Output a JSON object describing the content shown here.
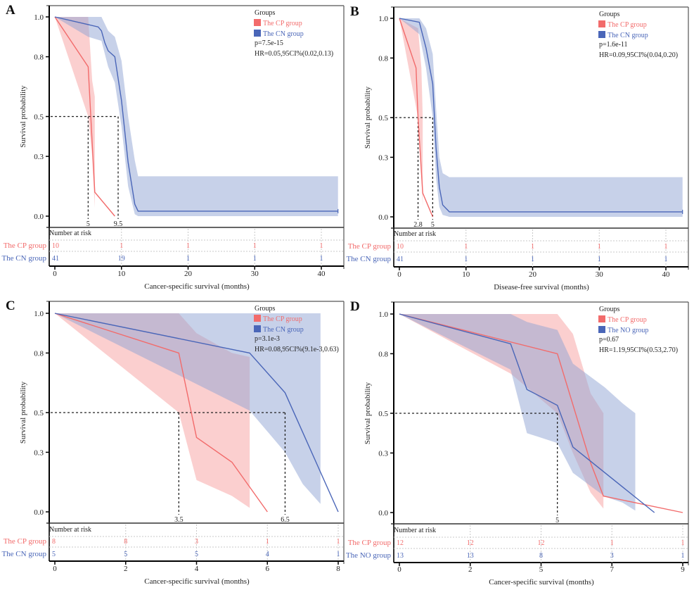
{
  "colors": {
    "cp": "#f26b6b",
    "cp_fill": "#f7a8a8",
    "cn": "#4a66b8",
    "cn_fill": "#8fa3d4",
    "text": "#1a1a1a",
    "dashed": "#222222",
    "grid": "#c8c8c8"
  },
  "chart_data": [
    {
      "type": "line",
      "panel_label": "A",
      "title": "",
      "xlabel": "Cancer-specific survival (months)",
      "ylabel": "Survival probability",
      "x_ticks": [
        0,
        10,
        20,
        30,
        40
      ],
      "x_tick_labels": [
        "0",
        "10",
        "20",
        "30",
        "40"
      ],
      "x_range": [
        0,
        43
      ],
      "y_ticks": [
        0.0,
        0.3,
        0.5,
        0.8,
        1.0
      ],
      "y_tick_labels": [
        "0.0",
        "0.3",
        "0.5",
        "0.8",
        "1.0"
      ],
      "ylim": [
        0,
        1
      ],
      "legend": {
        "title": "Groups",
        "entries": [
          "The CP group",
          "The CN group"
        ],
        "p_value": "p=7.5e-15",
        "hr": "HR=0.05,95CI%(0.02,0.13)",
        "placement": "top-right"
      },
      "median_lines": [
        {
          "x": 5,
          "label": "5"
        },
        {
          "x": 9.5,
          "label": "9.5"
        }
      ],
      "series": [
        {
          "name": "The CP group",
          "color_key": "cp",
          "points": [
            [
              0,
              1.0
            ],
            [
              5,
              0.75
            ],
            [
              6,
              0.12
            ],
            [
              9,
              0.0
            ]
          ],
          "ci_upper": [
            [
              0,
              1.0
            ],
            [
              5,
              1.0
            ],
            [
              5,
              1.0
            ]
          ],
          "ci_band": [
            [
              0,
              1.0,
              1.0
            ],
            [
              5,
              1.0,
              0.5
            ],
            [
              5.6,
              0.68,
              0.3
            ],
            [
              6,
              0.6,
              0.04
            ]
          ]
        },
        {
          "name": "The CN group",
          "color_key": "cn",
          "points": [
            [
              0,
              1.0
            ],
            [
              6.5,
              0.95
            ],
            [
              7,
              0.93
            ],
            [
              7.5,
              0.87
            ],
            [
              8,
              0.83
            ],
            [
              9,
              0.8
            ],
            [
              10,
              0.58
            ],
            [
              11,
              0.27
            ],
            [
              12,
              0.06
            ],
            [
              12.5,
              0.025
            ],
            [
              42.5,
              0.025
            ]
          ],
          "ci_band": [
            [
              0,
              1.0,
              1.0
            ],
            [
              5,
              1.0,
              0.9
            ],
            [
              7,
              1.0,
              0.88
            ],
            [
              8,
              0.93,
              0.75
            ],
            [
              9,
              0.9,
              0.67
            ],
            [
              10,
              0.78,
              0.45
            ],
            [
              11,
              0.5,
              0.15
            ],
            [
              12,
              0.28,
              0.01
            ],
            [
              12.5,
              0.2,
              0.0
            ],
            [
              42.5,
              0.2,
              0.0
            ]
          ]
        }
      ],
      "risk_table": {
        "title": "Number at risk",
        "rows": [
          {
            "group": "The CP group",
            "color_key": "cp",
            "values": [
              "10",
              "1",
              "1",
              "1",
              "1"
            ]
          },
          {
            "group": "The CN group",
            "color_key": "cn",
            "values": [
              "41",
              "19",
              "1",
              "1",
              "1"
            ]
          }
        ]
      }
    },
    {
      "type": "line",
      "panel_label": "B",
      "title": "",
      "xlabel": "Disease-free survival (months)",
      "ylabel": "Survival probability",
      "x_ticks": [
        0,
        10,
        20,
        30,
        40
      ],
      "x_tick_labels": [
        "0",
        "10",
        "20",
        "30",
        "40"
      ],
      "x_range": [
        0,
        43
      ],
      "y_ticks": [
        0.0,
        0.3,
        0.5,
        0.8,
        1.0
      ],
      "y_tick_labels": [
        "0.0",
        "0.3",
        "0.5",
        "0.8",
        "1.0"
      ],
      "ylim": [
        0,
        1
      ],
      "legend": {
        "title": "Groups",
        "entries": [
          "The CP group",
          "The CN group"
        ],
        "p_value": "p=1.6e-11",
        "hr": "HR=0.09,95CI%(0.04,0.20)",
        "placement": "top-right"
      },
      "median_lines": [
        {
          "x": 2.8,
          "label": "2.8"
        },
        {
          "x": 5,
          "label": "5"
        }
      ],
      "series": [
        {
          "name": "The CP group",
          "color_key": "cp",
          "points": [
            [
              0,
              1.0
            ],
            [
              2.5,
              0.75
            ],
            [
              2.8,
              0.5
            ],
            [
              3.5,
              0.12
            ],
            [
              5,
              0.0
            ]
          ],
          "ci_band": [
            [
              0,
              1.0,
              1.0
            ],
            [
              2.8,
              0.95,
              0.5
            ],
            [
              3.3,
              0.75,
              0.2
            ],
            [
              3.5,
              0.5,
              0.05
            ]
          ]
        },
        {
          "name": "The CN group",
          "color_key": "cn",
          "points": [
            [
              0,
              1.0
            ],
            [
              3,
              0.98
            ],
            [
              4,
              0.85
            ],
            [
              5,
              0.67
            ],
            [
              5.5,
              0.35
            ],
            [
              6,
              0.15
            ],
            [
              6.5,
              0.06
            ],
            [
              7.5,
              0.025
            ],
            [
              42.5,
              0.025
            ]
          ],
          "ci_band": [
            [
              0,
              1.0,
              1.0
            ],
            [
              3,
              1.0,
              0.92
            ],
            [
              4,
              0.95,
              0.75
            ],
            [
              5,
              0.82,
              0.5
            ],
            [
              5.5,
              0.55,
              0.2
            ],
            [
              6,
              0.3,
              0.05
            ],
            [
              6.5,
              0.22,
              0.01
            ],
            [
              7.5,
              0.2,
              0.0
            ],
            [
              42.5,
              0.2,
              0.0
            ]
          ]
        }
      ],
      "risk_table": {
        "title": "Number at risk",
        "rows": [
          {
            "group": "The CP group",
            "color_key": "cp",
            "values": [
              "10",
              "1",
              "1",
              "1",
              "1"
            ]
          },
          {
            "group": "The CN group",
            "color_key": "cn",
            "values": [
              "41",
              "1",
              "1",
              "1",
              "1"
            ]
          }
        ]
      }
    },
    {
      "type": "line",
      "panel_label": "C",
      "title": "",
      "xlabel": "Cancer-specific survival (months)",
      "ylabel": "Survival probability",
      "x_ticks": [
        0,
        2,
        4,
        6,
        8
      ],
      "x_tick_labels": [
        "0",
        "2",
        "4",
        "6",
        "8"
      ],
      "x_range": [
        0,
        8.15
      ],
      "y_ticks": [
        0.0,
        0.3,
        0.5,
        0.8,
        1.0
      ],
      "y_tick_labels": [
        "0.0",
        "0.3",
        "0.5",
        "0.8",
        "1.0"
      ],
      "ylim": [
        0,
        1
      ],
      "legend": {
        "title": "Groups",
        "entries": [
          "The CP group",
          "The CN group"
        ],
        "p_value": "p=3.1e-3",
        "hr": "HR=0.08,95CI%(9.1e-3,0.63)",
        "placement": "top-right"
      },
      "median_lines": [
        {
          "x": 3.5,
          "label": "3.5"
        },
        {
          "x": 6.5,
          "label": "6.5"
        }
      ],
      "series": [
        {
          "name": "The CP group",
          "color_key": "cp",
          "points": [
            [
              0,
              1.0
            ],
            [
              3.5,
              0.8
            ],
            [
              4,
              0.375
            ],
            [
              5,
              0.25
            ],
            [
              6,
              0.0
            ]
          ],
          "ci_band": [
            [
              0,
              1.0,
              1.0
            ],
            [
              3.5,
              1.0,
              0.5
            ],
            [
              4,
              0.9,
              0.16
            ],
            [
              5,
              0.8,
              0.08
            ],
            [
              5.5,
              0.78,
              0.02
            ]
          ]
        },
        {
          "name": "The CN group",
          "color_key": "cn",
          "points": [
            [
              0,
              1.0
            ],
            [
              5.5,
              0.8
            ],
            [
              6.5,
              0.6
            ],
            [
              7,
              0.4
            ],
            [
              7.5,
              0.2
            ],
            [
              8,
              0.0
            ]
          ],
          "ci_band": [
            [
              0,
              1.0,
              1.0
            ],
            [
              5.5,
              1.0,
              0.51
            ],
            [
              6.5,
              1.0,
              0.3
            ],
            [
              7,
              1.0,
              0.14
            ],
            [
              7.5,
              1.0,
              0.04
            ]
          ]
        }
      ],
      "risk_table": {
        "title": "Number at risk",
        "rows": [
          {
            "group": "The CP group",
            "color_key": "cp",
            "values": [
              "8",
              "8",
              "3",
              "1",
              "1"
            ]
          },
          {
            "group": "The CN group",
            "color_key": "cn",
            "values": [
              "5",
              "5",
              "5",
              "4",
              "1"
            ]
          }
        ]
      }
    },
    {
      "type": "line",
      "panel_label": "D",
      "title": "",
      "xlabel": "Cancer-specific survival (months)",
      "ylabel": "Survival probability",
      "x_ticks": [
        0,
        2,
        5,
        7,
        9
      ],
      "x_tick_labels": [
        "0",
        "2",
        "5",
        "7",
        "9"
      ],
      "x_scale": "tick-index",
      "x_range": [
        0,
        4.08
      ],
      "y_ticks": [
        0.0,
        0.3,
        0.5,
        0.8,
        1.0
      ],
      "y_tick_labels": [
        "0.0",
        "0.3",
        "0.5",
        "0.8",
        "1.0"
      ],
      "ylim": [
        0,
        1
      ],
      "legend": {
        "title": "Groups",
        "entries": [
          "The CP group",
          "The NO group"
        ],
        "p_value": "p=0.67",
        "hr": "HR=1.19,95CI%(0.53,2.70)",
        "placement": "top-right"
      },
      "median_lines": [
        {
          "x": 2.23,
          "label": "5"
        }
      ],
      "series": [
        {
          "name": "The CP group",
          "color_key": "cp",
          "points": [
            [
              0,
              1.0
            ],
            [
              2.23,
              0.8
            ],
            [
              2.7,
              0.25
            ],
            [
              2.88,
              0.083
            ],
            [
              4.0,
              0.0
            ]
          ],
          "ci_band": [
            [
              0,
              1.0,
              1.0
            ],
            [
              1.57,
              1.0,
              0.7
            ],
            [
              2.23,
              1.0,
              0.5
            ],
            [
              2.45,
              0.9,
              0.3
            ],
            [
              2.7,
              0.6,
              0.1
            ],
            [
              2.88,
              0.5,
              0.02
            ]
          ]
        },
        {
          "name": "The NO group",
          "color_key": "cn",
          "points": [
            [
              0,
              1.0
            ],
            [
              1.57,
              0.85
            ],
            [
              1.8,
              0.62
            ],
            [
              2.23,
              0.54
            ],
            [
              2.45,
              0.33
            ],
            [
              3.6,
              0.0
            ]
          ],
          "ci_band": [
            [
              0,
              1.0,
              1.0
            ],
            [
              1.57,
              1.0,
              0.72
            ],
            [
              1.8,
              0.96,
              0.4
            ],
            [
              2.23,
              0.92,
              0.35
            ],
            [
              2.45,
              0.75,
              0.2
            ],
            [
              2.9,
              0.63,
              0.08
            ],
            [
              3.15,
              0.55,
              0.05
            ],
            [
              3.33,
              0.5,
              0.01
            ]
          ]
        }
      ],
      "risk_table": {
        "title": "Number at risk",
        "rows": [
          {
            "group": "The CP group",
            "color_key": "cp",
            "values": [
              "12",
              "12",
              "12",
              "1",
              "1"
            ]
          },
          {
            "group": "The NO group",
            "color_key": "cn",
            "values": [
              "13",
              "13",
              "8",
              "3",
              "1"
            ]
          }
        ]
      }
    }
  ]
}
